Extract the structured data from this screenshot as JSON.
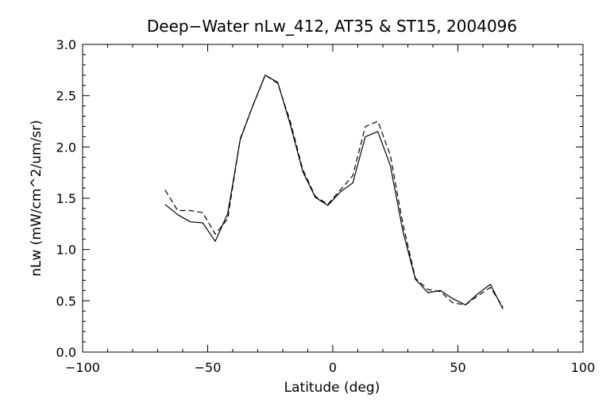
{
  "chart_data": {
    "type": "line",
    "title": "Deep−Water nLw_412, AT35 & ST15, 2004096",
    "xlabel": "Latitude (deg)",
    "ylabel": "nLw (mW/cm^2/um/sr)",
    "xlim": [
      -100,
      100
    ],
    "ylim": [
      0.0,
      3.0
    ],
    "x_ticks": [
      -100,
      -50,
      0,
      50,
      100
    ],
    "x_tick_labels": [
      "−100",
      "−50",
      "0",
      "50",
      "100"
    ],
    "y_ticks": [
      0.0,
      0.5,
      1.0,
      1.5,
      2.0,
      2.5,
      3.0
    ],
    "y_tick_labels": [
      "0.0",
      "0.5",
      "1.0",
      "1.5",
      "2.0",
      "2.5",
      "3.0"
    ],
    "grid": false,
    "legend": "none",
    "series": [
      {
        "style": "solid",
        "color": "#000000",
        "x": [
          -67,
          -62,
          -57,
          -52,
          -47,
          -42,
          -37,
          -32,
          -27,
          -22,
          -17,
          -12,
          -7,
          -2,
          3,
          8,
          13,
          18,
          23,
          28,
          33,
          38,
          43,
          48,
          53,
          58,
          63,
          68
        ],
        "y": [
          1.44,
          1.34,
          1.27,
          1.26,
          1.08,
          1.35,
          2.07,
          2.4,
          2.7,
          2.63,
          2.22,
          1.76,
          1.51,
          1.43,
          1.56,
          1.65,
          2.1,
          2.15,
          1.82,
          1.18,
          0.71,
          0.58,
          0.6,
          0.52,
          0.46,
          0.57,
          0.66,
          0.42
        ]
      },
      {
        "style": "dashed",
        "color": "#000000",
        "x": [
          -67,
          -62,
          -57,
          -52,
          -47,
          -42,
          -37,
          -32,
          -27,
          -22,
          -17,
          -12,
          -7,
          -2,
          3,
          8,
          13,
          18,
          23,
          28,
          33,
          38,
          43,
          48,
          53,
          58,
          63,
          68
        ],
        "y": [
          1.58,
          1.38,
          1.38,
          1.36,
          1.15,
          1.3,
          2.08,
          2.4,
          2.7,
          2.62,
          2.25,
          1.78,
          1.52,
          1.44,
          1.58,
          1.72,
          2.2,
          2.25,
          1.92,
          1.25,
          0.72,
          0.61,
          0.59,
          0.48,
          0.46,
          0.55,
          0.63,
          0.44
        ]
      }
    ]
  }
}
